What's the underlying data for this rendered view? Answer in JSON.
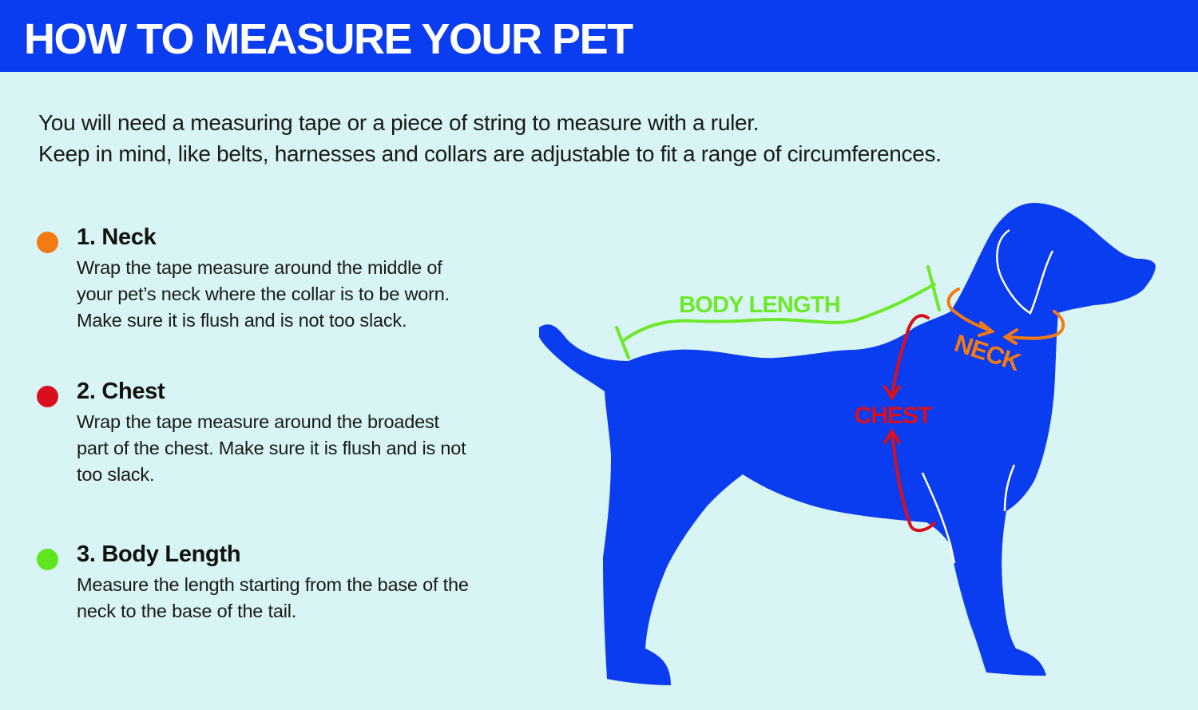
{
  "header": {
    "title": "HOW TO MEASURE YOUR PET"
  },
  "intro": {
    "line1": "You will need a measuring tape or a piece of string to measure with a ruler.",
    "line2": "Keep in mind, like belts, harnesses and collars are adjustable to fit a range of circumferences."
  },
  "steps": [
    {
      "title": "1. Neck",
      "color": "#f47a14",
      "lines": [
        "Wrap the tape measure around the middle of",
        "your pet’s neck where the collar is to be worn.",
        "Make sure it is flush and is not too slack."
      ]
    },
    {
      "title": "2. Chest",
      "color": "#d8101e",
      "lines": [
        "Wrap the tape measure around the broadest",
        "part of the chest. Make sure it is flush and is not",
        "too slack."
      ]
    },
    {
      "title": "3. Body Length",
      "color": "#5ee61e",
      "lines": [
        "Measure the length starting from the base of the",
        "neck to the base of the tail."
      ]
    }
  ],
  "diagram": {
    "dog_color": "#0a3cf0",
    "labels": {
      "body_length": "BODY LENGTH",
      "neck": "NECK",
      "chest": "CHEST"
    },
    "colors": {
      "body_length": "#6ee82a",
      "neck": "#f47a14",
      "chest": "#d8101e"
    }
  }
}
